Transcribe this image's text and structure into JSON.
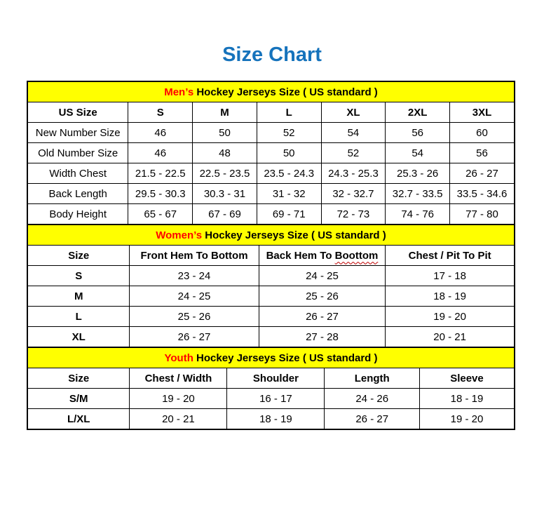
{
  "page": {
    "title": "Size Chart"
  },
  "colors": {
    "title_blue": "#1673BC",
    "banner_yellow": "#FFFF00",
    "highlight_red": "#FF0000",
    "border_black": "#000000",
    "squiggle_red": "#C00000"
  },
  "tables": [
    {
      "id": "mens",
      "banner": {
        "highlight": "Men’s",
        "rest": " Hockey Jerseys Size ( US standard )"
      },
      "header": [
        "US Size",
        "S",
        "M",
        "L",
        "XL",
        "2XL",
        "3XL"
      ],
      "rows": [
        [
          "New Number Size",
          "46",
          "50",
          "52",
          "54",
          "56",
          "60"
        ],
        [
          "Old Number Size",
          "46",
          "48",
          "50",
          "52",
          "54",
          "56"
        ],
        [
          "Width Chest",
          "21.5 - 22.5",
          "22.5 - 23.5",
          "23.5 - 24.3",
          "24.3 - 25.3",
          "25.3 - 26",
          "26 - 27"
        ],
        [
          "Back Length",
          "29.5 - 30.3",
          "30.3 - 31",
          "31 - 32",
          "32 - 32.7",
          "32.7 - 33.5",
          "33.5 - 34.6"
        ],
        [
          "Body Height",
          "65 - 67",
          "67 - 69",
          "69 - 71",
          "72 - 73",
          "74 - 76",
          "77 - 80"
        ]
      ]
    },
    {
      "id": "womens",
      "banner": {
        "highlight": "Women’s",
        "rest": " Hockey Jerseys Size ( US standard )"
      },
      "header": [
        "Size",
        "Front Hem To Bottom",
        "Back Hem To Boottom",
        "Chest / Pit To Pit"
      ],
      "squiggle": {
        "col": 2,
        "prefix": "Back Hem To ",
        "word": "Boottom"
      },
      "rows": [
        [
          "S",
          "23 - 24",
          "24 - 25",
          "17 - 18"
        ],
        [
          "M",
          "24 - 25",
          "25 - 26",
          "18 - 19"
        ],
        [
          "L",
          "25 - 26",
          "26 - 27",
          "19 - 20"
        ],
        [
          "XL",
          "26 - 27",
          "27 - 28",
          "20 - 21"
        ]
      ]
    },
    {
      "id": "youth",
      "banner": {
        "highlight": "Youth",
        "rest": " Hockey Jerseys Size ( US standard )"
      },
      "header": [
        "Size",
        "Chest / Width",
        "Shoulder",
        "Length",
        "Sleeve"
      ],
      "rows": [
        [
          "S/M",
          "19 - 20",
          "16 - 17",
          "24 - 26",
          "18 - 19"
        ],
        [
          "L/XL",
          "20 - 21",
          "18 - 19",
          "26 - 27",
          "19 - 20"
        ]
      ]
    }
  ]
}
